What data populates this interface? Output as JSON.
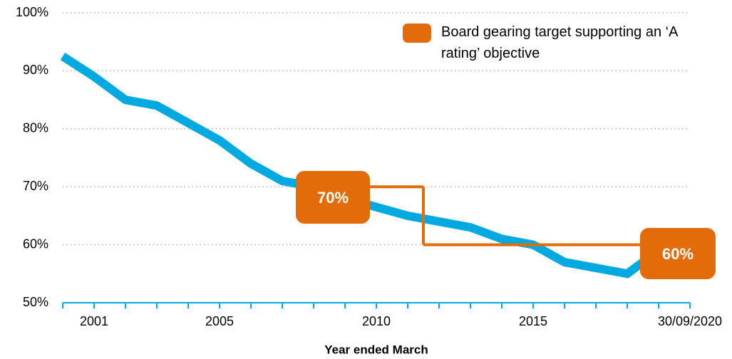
{
  "chart_data": {
    "type": "line",
    "categories": [
      null,
      "2001",
      null,
      null,
      null,
      "2005",
      null,
      null,
      null,
      null,
      "2010",
      null,
      null,
      null,
      null,
      "2015",
      null,
      null,
      null,
      null,
      "30/09/2020"
    ],
    "series": [
      {
        "color": "#00a9e0",
        "values": [
          92.5,
          89,
          85,
          84,
          81,
          78,
          74,
          71,
          70,
          68,
          66.5,
          65,
          64,
          63,
          61,
          60,
          57,
          56,
          55,
          59,
          null
        ]
      },
      {
        "name": "Board gearing target supporting an ‘A rating’ objective",
        "color": "#e36c0a",
        "step": true,
        "values": [
          null,
          null,
          null,
          null,
          null,
          null,
          null,
          null,
          70,
          70,
          70,
          70,
          60,
          60,
          60,
          60,
          60,
          60,
          60,
          60,
          null
        ]
      }
    ],
    "annotations": [
      "70%",
      "60%"
    ],
    "xlabel": "Year ended March",
    "ylim": [
      50,
      100
    ],
    "yticks": [
      {
        "value": 50,
        "label": "50%"
      },
      {
        "value": 60,
        "label": "60%"
      },
      {
        "value": 70,
        "label": "70%"
      },
      {
        "value": 80,
        "label": "80%"
      },
      {
        "value": 90,
        "label": "90%"
      },
      {
        "value": 100,
        "label": "100%"
      }
    ],
    "grid": true,
    "legend": "top-right"
  }
}
